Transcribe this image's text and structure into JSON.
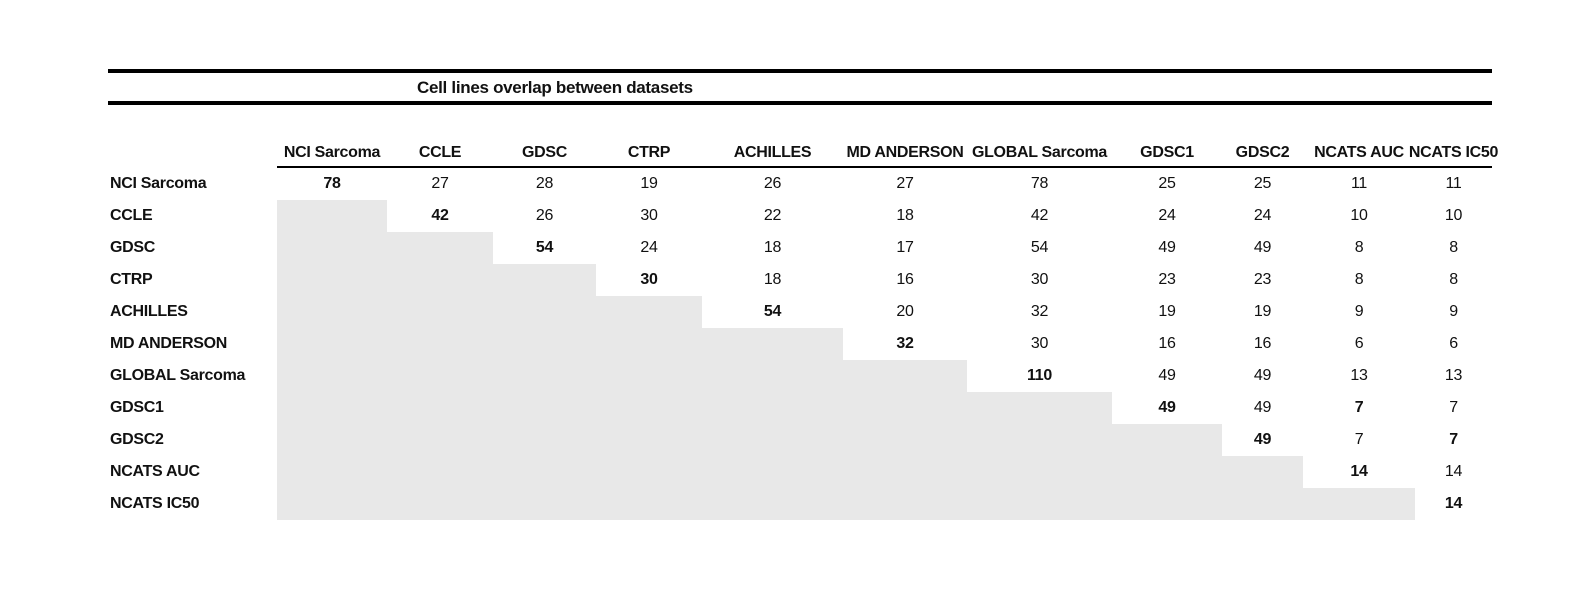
{
  "title": "Cell lines overlap between datasets",
  "chart_data": {
    "type": "table",
    "title": "Cell lines overlap between datasets",
    "columns": [
      "NCI Sarcoma",
      "CCLE",
      "GDSC",
      "CTRP",
      "ACHILLES",
      "MD ANDERSON",
      "GLOBAL Sarcoma",
      "GDSC1",
      "GDSC2",
      "NCATS AUC",
      "NCATS IC50"
    ],
    "rows": [
      "NCI Sarcoma",
      "CCLE",
      "GDSC",
      "CTRP",
      "ACHILLES",
      "MD ANDERSON",
      "GLOBAL Sarcoma",
      "GDSC1",
      "GDSC2",
      "NCATS AUC",
      "NCATS IC50"
    ],
    "matrix": [
      [
        78,
        27,
        28,
        19,
        26,
        27,
        78,
        25,
        25,
        11,
        11
      ],
      [
        null,
        42,
        26,
        30,
        22,
        18,
        42,
        24,
        24,
        10,
        10
      ],
      [
        null,
        null,
        54,
        24,
        18,
        17,
        54,
        49,
        49,
        8,
        8
      ],
      [
        null,
        null,
        null,
        30,
        18,
        16,
        30,
        23,
        23,
        8,
        8
      ],
      [
        null,
        null,
        null,
        null,
        54,
        20,
        32,
        19,
        19,
        9,
        9
      ],
      [
        null,
        null,
        null,
        null,
        null,
        32,
        30,
        16,
        16,
        6,
        6
      ],
      [
        null,
        null,
        null,
        null,
        null,
        null,
        110,
        49,
        49,
        13,
        13
      ],
      [
        null,
        null,
        null,
        null,
        null,
        null,
        null,
        49,
        49,
        7,
        7
      ],
      [
        null,
        null,
        null,
        null,
        null,
        null,
        null,
        null,
        49,
        7,
        7
      ],
      [
        null,
        null,
        null,
        null,
        null,
        null,
        null,
        null,
        null,
        14,
        14
      ],
      [
        null,
        null,
        null,
        null,
        null,
        null,
        null,
        null,
        null,
        null,
        14
      ]
    ],
    "diagonal_bold": true,
    "extra_bold_cells": [
      [
        7,
        9
      ],
      [
        8,
        10
      ]
    ],
    "shaded_lower_triangle": true,
    "legend_position": "none",
    "grid": false
  },
  "colors": {
    "shaded_cell": "#e8e8e8",
    "rule": "#000000",
    "text": "#111111",
    "background": "#ffffff"
  }
}
